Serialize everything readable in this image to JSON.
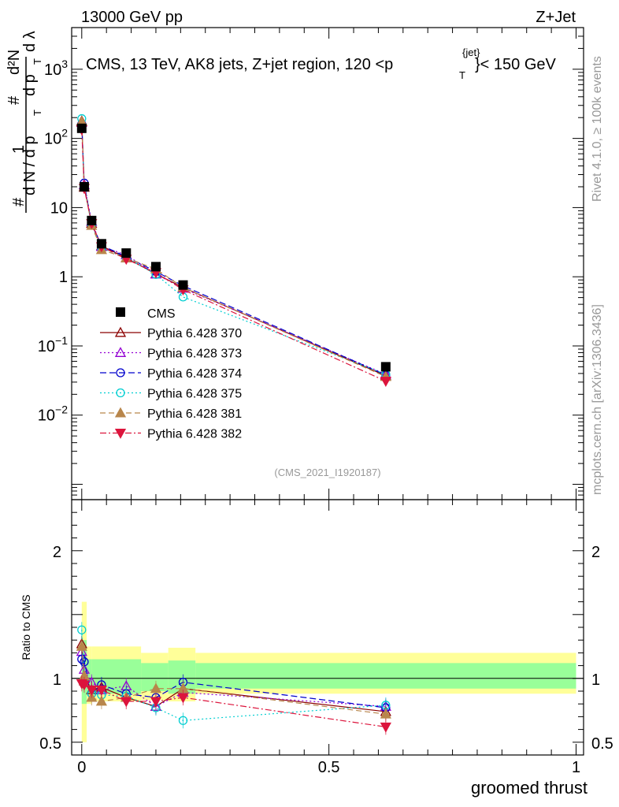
{
  "header": {
    "left": "13000 GeV pp",
    "right": "Z+Jet"
  },
  "plot_title": {
    "main": "CMS, 13 TeV, AK8 jets, Z+jet region, 120 <p",
    "sup": "{jet}",
    "sub": "T",
    "tail": "}< 150 GeV"
  },
  "ylabel": {
    "hash1": "#",
    "one": "1",
    "dN": "d N / d p",
    "T1": "T",
    "hash2": "#",
    "d2N": "d²N",
    "dpT": "d p",
    "T2": "T",
    "dl": "d λ"
  },
  "side_text": {
    "rivet": "Rivet 4.1.0, ≥ 100k events",
    "mcplots": "mcplots.cern.ch [arXiv:1306.3436]"
  },
  "analysis_tag": "(CMS_2021_I1920187)",
  "ratio_ylabel": "Ratio to CMS",
  "xlabel": "groomed thrust",
  "main_axis": {
    "yticks": [
      {
        "base": "10",
        "exp": "3",
        "value": 1000
      },
      {
        "base": "10",
        "exp": "2",
        "value": 100
      },
      {
        "base": "10",
        "exp": "",
        "value": 10
      },
      {
        "base": "1",
        "exp": "",
        "value": 1
      },
      {
        "base": "10",
        "exp": "−1",
        "value": 0.1
      },
      {
        "base": "10",
        "exp": "−2",
        "value": 0.01
      }
    ]
  },
  "ratio_axis": {
    "ticks": [
      {
        "label": "2",
        "value": 2
      },
      {
        "label": "1",
        "value": 1
      },
      {
        "label": "0.5",
        "value": 0.5
      }
    ]
  },
  "x_axis": {
    "ticks": [
      {
        "label": "0",
        "value": 0
      },
      {
        "label": "0.5",
        "value": 0.5
      },
      {
        "label": "1",
        "value": 1
      }
    ]
  },
  "chart_data": {
    "type": "scatter",
    "title": "CMS, 13 TeV, AK8 jets, Z+jet region, 120 < pT jet < 150 GeV",
    "xlabel": "groomed thrust",
    "ylabel": "1/dN/dpT dN²/dpT dλ",
    "xlim": [
      -0.03,
      1.02
    ],
    "ylim_main": [
      0.0006,
      4000
    ],
    "ylim_ratio": [
      0.4,
      2.4
    ],
    "yscale": "log",
    "x": [
      0.0,
      0.005,
      0.02,
      0.04,
      0.09,
      0.15,
      0.205,
      0.615
    ],
    "data": {
      "name": "CMS",
      "color": "#000000",
      "marker": "square",
      "values": [
        140,
        20,
        6.5,
        3.0,
        2.2,
        1.4,
        0.76,
        0.05
      ],
      "errors": [
        10,
        1.5,
        0.5,
        0.2,
        0.15,
        0.1,
        0.05,
        0.005
      ]
    },
    "ratio_bands": {
      "x_edges": [
        0.0,
        0.01,
        0.02,
        0.12,
        0.175,
        0.23,
        1.0
      ],
      "yellow": [
        [
          0.5,
          1.6
        ],
        [
          0.8,
          1.25
        ],
        [
          0.82,
          1.25
        ],
        [
          0.83,
          1.2
        ],
        [
          0.82,
          1.24
        ],
        [
          0.88,
          1.2
        ]
      ],
      "green": [
        [
          0.8,
          1.3
        ],
        [
          0.88,
          1.15
        ],
        [
          0.88,
          1.15
        ],
        [
          0.9,
          1.12
        ],
        [
          0.88,
          1.14
        ],
        [
          0.92,
          1.12
        ]
      ],
      "yellow_color": "#ffff99",
      "green_color": "#99ff99"
    },
    "series": [
      {
        "name": "Pythia 6.428 370",
        "color": "#8b0000",
        "marker": "triangle-open",
        "dash": "",
        "values": [
          178,
          19.6,
          5.9,
          2.79,
          1.87,
          1.1,
          0.7,
          0.037
        ],
        "ratio": [
          1.27,
          0.98,
          0.91,
          0.93,
          0.85,
          0.78,
          0.92,
          0.74
        ]
      },
      {
        "name": "Pythia 6.428 373",
        "color": "#9400d3",
        "marker": "triangle-open",
        "dash": "2,3",
        "values": [
          170,
          21.4,
          6.3,
          2.73,
          2.07,
          1.09,
          0.68,
          0.039
        ],
        "ratio": [
          1.21,
          1.07,
          0.97,
          0.91,
          0.94,
          0.78,
          0.89,
          0.78
        ]
      },
      {
        "name": "Pythia 6.428 374",
        "color": "#0000cd",
        "marker": "circle-open",
        "dash": "8,4",
        "values": [
          161,
          22.6,
          5.7,
          2.85,
          1.94,
          1.19,
          0.74,
          0.038
        ],
        "ratio": [
          1.15,
          1.13,
          0.88,
          0.95,
          0.88,
          0.85,
          0.97,
          0.77
        ]
      },
      {
        "name": "Pythia 6.428 375",
        "color": "#00ced1",
        "marker": "circle-open",
        "dash": "2,3",
        "values": [
          193,
          19.6,
          5.7,
          2.61,
          1.89,
          1.08,
          0.51,
          0.039
        ],
        "ratio": [
          1.38,
          0.98,
          0.88,
          0.87,
          0.86,
          0.77,
          0.67,
          0.79
        ]
      },
      {
        "name": "Pythia 6.428 381",
        "color": "#b8864b",
        "marker": "triangle-filled",
        "dash": "7,4",
        "values": [
          175,
          20.4,
          5.5,
          2.46,
          1.87,
          1.29,
          0.7,
          0.036
        ],
        "ratio": [
          1.25,
          1.02,
          0.85,
          0.82,
          0.85,
          0.92,
          0.92,
          0.72
        ]
      },
      {
        "name": "Pythia 6.428 382",
        "color": "#dc143c",
        "marker": "triangle-down-filled",
        "dash": "8,3,2,3",
        "values": [
          134,
          19.0,
          5.9,
          2.73,
          1.8,
          1.15,
          0.65,
          0.031
        ],
        "ratio": [
          0.96,
          0.95,
          0.91,
          0.91,
          0.82,
          0.82,
          0.85,
          0.62
        ]
      }
    ]
  }
}
